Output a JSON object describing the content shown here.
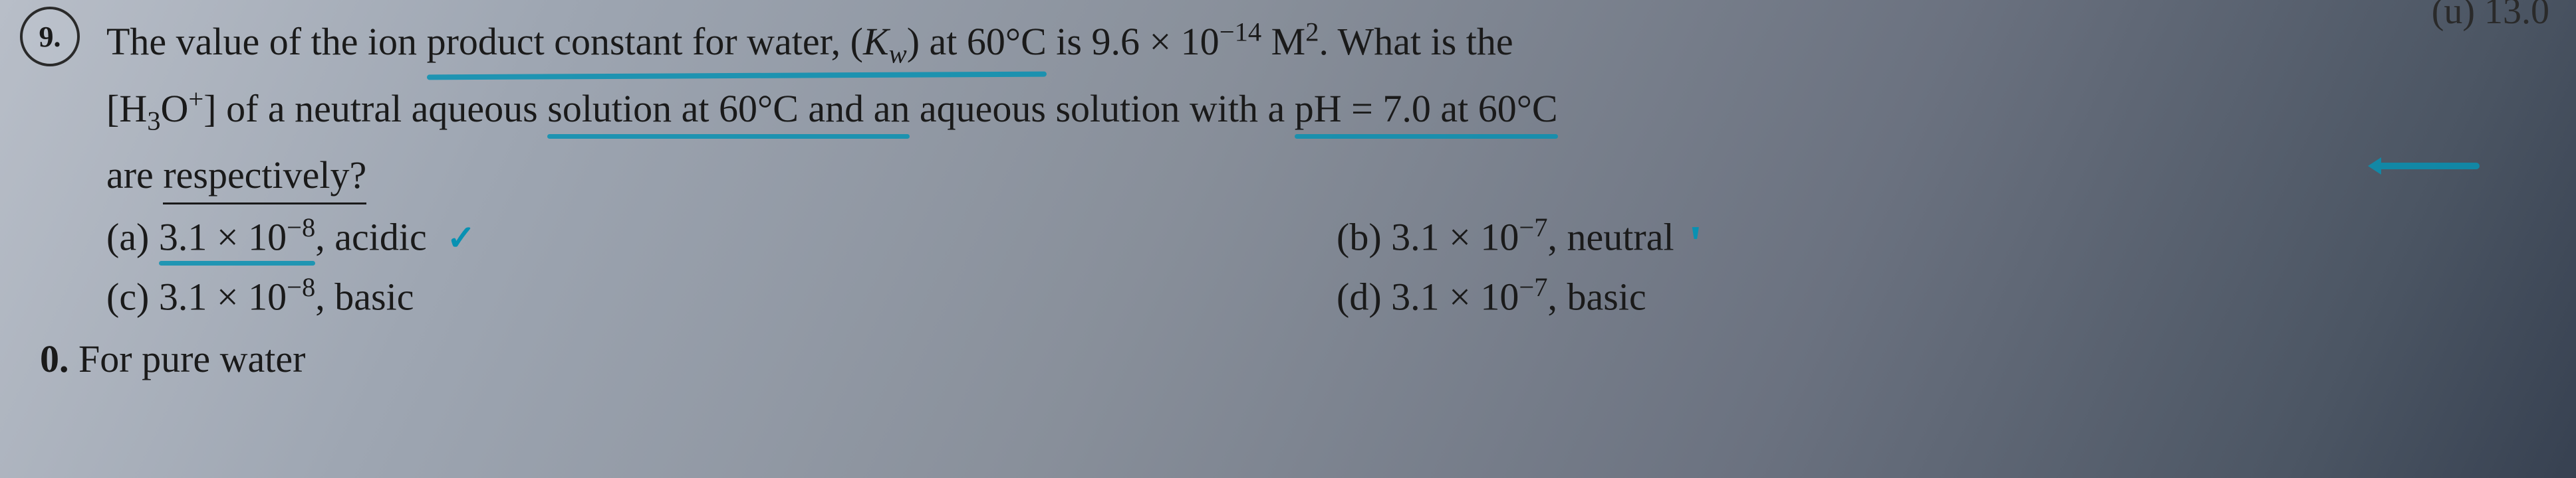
{
  "question": {
    "number": "9.",
    "corner_label": "(u) 13.0",
    "line1_part1": "The value of the ion ",
    "line1_underlined": "product constant for water, (",
    "line1_kw": "K",
    "line1_kw_sub": "w",
    "line1_part2": ") at 60°C",
    "line1_part3": " is 9.6 × 10",
    "line1_exp": "−14",
    "line1_part4": " M",
    "line1_msup": "2",
    "line1_part5": ". What is the",
    "line2_part1": "[H",
    "line2_sub1": "3",
    "line2_part2": "O",
    "line2_sup1": "+",
    "line2_part3": "] of a neutral aqueous ",
    "line2_under": "solution at 60°C and an",
    "line2_part4": " aqueous solution with a ",
    "line2_under2": "pH = 7.0 at 60°C",
    "line3": "are ",
    "line3_under": "respectively?"
  },
  "options": {
    "a": {
      "label": "(a) ",
      "value": "3.1 × 10",
      "exp": "−8",
      "suffix": ", acidic"
    },
    "b": {
      "label": "(b) ",
      "value": "3.1 × 10",
      "exp": "−7",
      "suffix": ", neutral"
    },
    "c": {
      "label": "(c) ",
      "value": "3.1 × 10",
      "exp": "−8",
      "suffix": ", basic"
    },
    "d": {
      "label": "(d) ",
      "value": "3.1 × 10",
      "exp": "−7",
      "suffix": ", basic"
    }
  },
  "bottom": {
    "number": "0.",
    "text": " For pure water"
  },
  "marks": {
    "tick": "✓",
    "pen": "ꞌ"
  },
  "colors": {
    "highlight": "#0891b2",
    "text": "#1a1a1a"
  }
}
